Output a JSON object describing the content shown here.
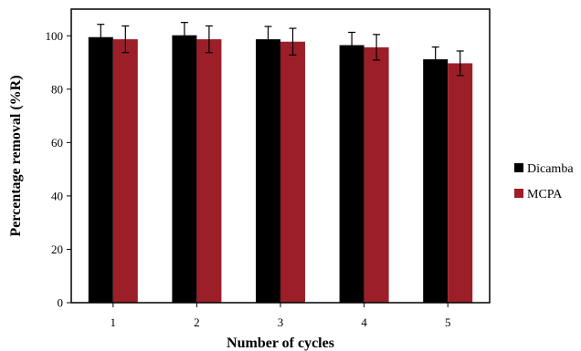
{
  "chart_data": {
    "type": "bar",
    "title": "",
    "xlabel": "Number of cycles",
    "ylabel": "Percentage removal (%R)",
    "categories": [
      "1",
      "2",
      "3",
      "4",
      "5"
    ],
    "ylim": [
      0,
      110
    ],
    "yticks": [
      0,
      20,
      40,
      60,
      80,
      100
    ],
    "grid": false,
    "legend_position": "right",
    "series": [
      {
        "name": "Dicamba",
        "color": "#000000",
        "values": [
          99.5,
          100.2,
          98.7,
          96.5,
          91.2
        ],
        "errors": [
          4.8,
          4.8,
          4.8,
          4.8,
          4.6
        ]
      },
      {
        "name": "MCPA",
        "color": "#9c1e28",
        "values": [
          98.7,
          98.7,
          97.8,
          95.7,
          89.7
        ],
        "errors": [
          5.0,
          5.0,
          5.0,
          4.8,
          4.6
        ]
      }
    ]
  }
}
